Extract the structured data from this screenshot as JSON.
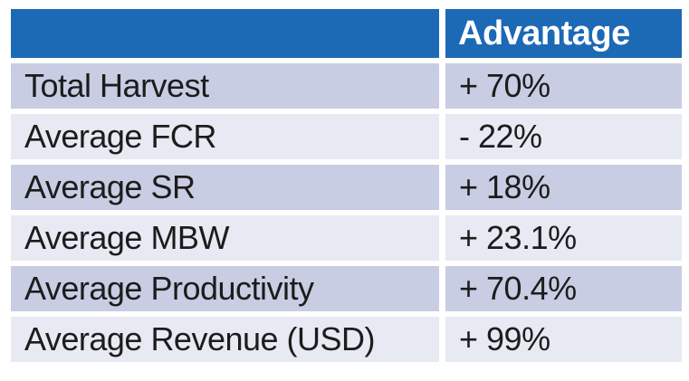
{
  "table": {
    "header": {
      "metric_label": "",
      "advantage_label": "Advantage"
    },
    "rows": [
      {
        "label": "Total Harvest",
        "value": "+ 70%"
      },
      {
        "label": "Average FCR",
        "value": "- 22%"
      },
      {
        "label": "Average SR",
        "value": "+ 18%"
      },
      {
        "label": "Average MBW",
        "value": "+ 23.1%"
      },
      {
        "label": "Average Productivity",
        "value": "+ 70.4%"
      },
      {
        "label": "Average Revenue (USD)",
        "value": "+ 99%"
      }
    ]
  },
  "colors": {
    "header_bg": "#1C69B6",
    "header_text": "#FFFFFF",
    "row_band_dark": "#C8CDE3",
    "row_band_light": "#E7E9F3",
    "body_text": "#1C1C1C",
    "page_background": "#FFFFFF"
  },
  "chart_data": {
    "type": "table",
    "title": "",
    "columns": [
      "",
      "Advantage"
    ],
    "rows": [
      [
        "Total Harvest",
        "+ 70%"
      ],
      [
        "Average FCR",
        "- 22%"
      ],
      [
        "Average SR",
        "+ 18%"
      ],
      [
        "Average MBW",
        "+ 23.1%"
      ],
      [
        "Average Productivity",
        "+ 70.4%"
      ],
      [
        "Average Revenue (USD)",
        "+ 99%"
      ]
    ],
    "numeric_values_percent": [
      70,
      -22,
      18,
      23.1,
      70.4,
      99
    ],
    "layout": {
      "banded_rows": true,
      "gridlines": "white-gaps",
      "header_fill": "#1C69B6",
      "band_dark": "#C8CDE3",
      "band_light": "#E7E9F3"
    }
  }
}
